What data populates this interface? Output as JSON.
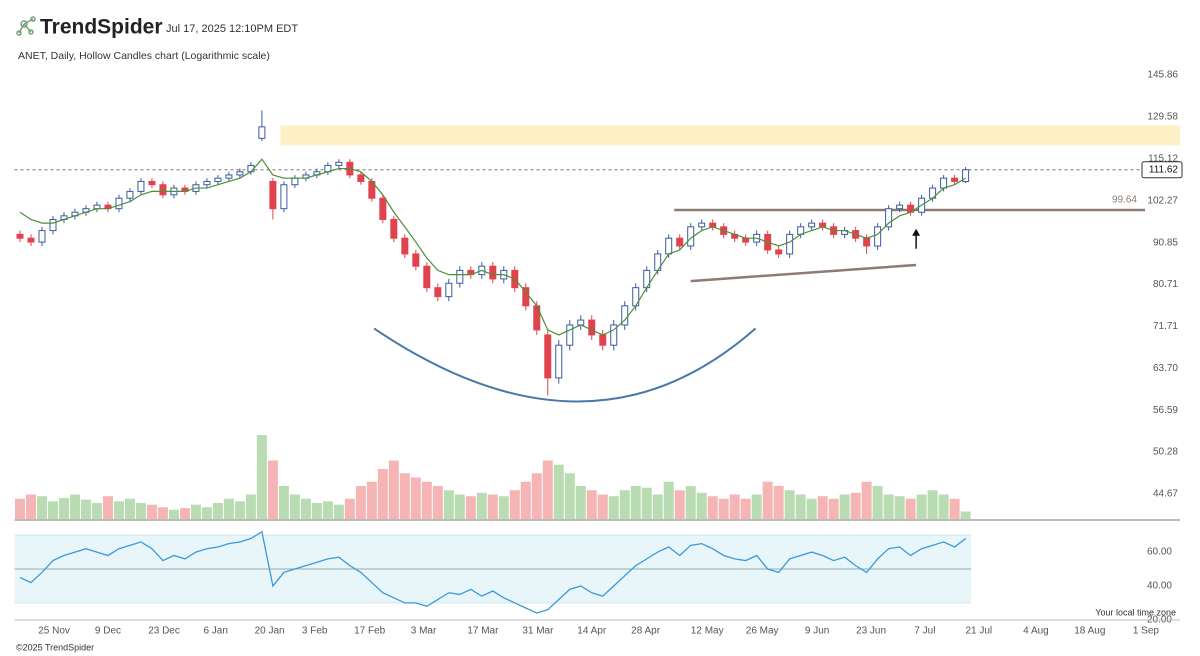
{
  "chart_data": {
    "type": "candlestick",
    "brand": "TrendSpider",
    "timestamp": "Jul 17, 2025 12:10PM EDT",
    "subtitle": "ANET, Daily, Hollow Candles chart (Logarithmic scale)",
    "copyright": "©2025 TrendSpider",
    "timezone_note": "Your local time zone",
    "log_scale": true,
    "xlim": [
      -0.5,
      105.5
    ],
    "xticks": [
      {
        "value": 3.1,
        "label": "25 Nov"
      },
      {
        "value": 8.0,
        "label": "9 Dec"
      },
      {
        "value": 13.1,
        "label": "23 Dec"
      },
      {
        "value": 17.8,
        "label": "6 Jan"
      },
      {
        "value": 22.7,
        "label": "20 Jan"
      },
      {
        "value": 26.8,
        "label": "3 Feb"
      },
      {
        "value": 31.8,
        "label": "17 Feb"
      },
      {
        "value": 36.7,
        "label": "3 Mar"
      },
      {
        "value": 42.1,
        "label": "17 Mar"
      },
      {
        "value": 47.1,
        "label": "31 Mar"
      },
      {
        "value": 52.0,
        "label": "14 Apr"
      },
      {
        "value": 56.9,
        "label": "28 Apr"
      },
      {
        "value": 62.5,
        "label": "12 May"
      },
      {
        "value": 67.5,
        "label": "26 May"
      },
      {
        "value": 72.5,
        "label": "9 Jun"
      },
      {
        "value": 77.4,
        "label": "23 Jun"
      },
      {
        "value": 82.3,
        "label": "7 Jul"
      },
      {
        "value": 87.2,
        "label": "21 Jul"
      },
      {
        "value": 92.4,
        "label": "4 Aug"
      },
      {
        "value": 97.3,
        "label": "18 Aug"
      },
      {
        "value": 102.4,
        "label": "1 Sep"
      }
    ],
    "ylim": [
      41.5,
      152.2
    ],
    "yticks": [
      145.86,
      129.58,
      115.12,
      102.27,
      90.85,
      80.71,
      71.71,
      {
        "value": 63.7,
        "label": "63.70"
      },
      56.59,
      50.28,
      44.67
    ],
    "up_color": "#3a5ba0",
    "down_color": "#e0434e",
    "ma_color": "#4e8f3a",
    "open": [
      93,
      92,
      91,
      94,
      97,
      98,
      99,
      100,
      101,
      100,
      103,
      105,
      108,
      107,
      104,
      106,
      105,
      107,
      108,
      109,
      110,
      111,
      122,
      108,
      100,
      107,
      109,
      110,
      111,
      113,
      114,
      110,
      108,
      103,
      97,
      92,
      88,
      85,
      80,
      78,
      81,
      84,
      83,
      85,
      82,
      84,
      80,
      76,
      70,
      62,
      68,
      72,
      73,
      70,
      68,
      72,
      76,
      80,
      84,
      88,
      92,
      90,
      95,
      96,
      95,
      93,
      92,
      91,
      93,
      89,
      88,
      93,
      95,
      96,
      95,
      93,
      94,
      92,
      90,
      95,
      100,
      101,
      99,
      103,
      106,
      109,
      108
    ],
    "high": [
      94,
      93,
      95,
      98,
      99,
      100,
      101,
      102,
      102,
      104,
      106,
      109,
      109,
      108,
      107,
      107,
      108,
      109,
      110,
      111,
      112,
      114,
      132,
      109,
      108,
      110,
      111,
      112,
      114,
      115,
      115,
      111,
      109,
      104,
      98,
      93,
      89,
      86,
      81,
      82,
      85,
      85,
      86,
      86,
      85,
      85,
      81,
      77,
      71,
      69,
      73,
      74,
      74,
      71,
      73,
      77,
      81,
      85,
      89,
      93,
      93,
      96,
      97,
      97,
      96,
      94,
      93,
      94,
      94,
      90,
      94,
      96,
      97,
      97,
      96,
      95,
      95,
      93,
      96,
      101,
      102,
      102,
      104,
      107,
      110,
      110,
      112.5
    ],
    "low": [
      91,
      90,
      90,
      93,
      96,
      97,
      98,
      99,
      99,
      99,
      102,
      104,
      106,
      103,
      103,
      104,
      104,
      106,
      107,
      108,
      109,
      110,
      121,
      97,
      99,
      106,
      108,
      109,
      110,
      112,
      109,
      107,
      102,
      96,
      91,
      87,
      84,
      79,
      77,
      77,
      80,
      82,
      82,
      81,
      81,
      79,
      75,
      70,
      59,
      61,
      67,
      71,
      69,
      67,
      67,
      71,
      75,
      79,
      83,
      87,
      89,
      89,
      94,
      94,
      92,
      91,
      90,
      90,
      88,
      87,
      87,
      92,
      94,
      94,
      92,
      92,
      91,
      88,
      89,
      94,
      99,
      98,
      98,
      102,
      105,
      107,
      107.5
    ],
    "close": [
      92,
      91,
      94,
      97,
      98,
      99,
      100,
      101,
      100,
      103,
      105,
      108,
      107,
      104,
      106,
      105,
      107,
      108,
      109,
      110,
      111,
      113,
      126,
      100,
      107,
      109,
      110,
      111,
      113,
      114,
      110,
      108,
      103,
      97,
      92,
      88,
      85,
      80,
      78,
      81,
      84,
      83,
      85,
      82,
      84,
      80,
      76,
      71,
      62,
      68,
      72,
      73,
      70,
      68,
      72,
      76,
      80,
      84,
      88,
      92,
      90,
      95,
      96,
      95,
      93,
      92,
      91,
      93,
      89,
      88,
      93,
      95,
      96,
      95,
      93,
      94,
      92,
      90,
      95,
      100,
      101,
      99,
      103,
      106,
      109,
      108,
      111.62
    ],
    "ma": [
      99,
      97,
      96,
      96,
      97,
      98,
      99,
      100,
      100,
      101,
      102,
      104,
      105,
      105,
      105,
      105,
      106,
      106,
      107,
      108,
      109,
      111,
      115,
      110,
      109,
      109,
      109,
      110,
      111,
      112,
      112,
      111,
      108,
      104,
      99,
      95,
      91,
      87,
      84,
      83,
      83,
      83,
      84,
      83,
      83,
      82,
      79,
      76,
      71,
      70,
      71,
      72,
      71,
      70,
      71,
      73,
      76,
      80,
      84,
      88,
      89,
      92,
      94,
      95,
      94,
      93,
      92,
      92,
      91,
      90,
      91,
      93,
      94,
      95,
      94,
      94,
      93,
      92,
      93,
      96,
      98,
      99,
      101,
      103,
      106,
      107,
      109
    ],
    "volume": [
      25,
      30,
      28,
      22,
      26,
      30,
      24,
      20,
      28,
      22,
      25,
      20,
      18,
      15,
      12,
      14,
      18,
      15,
      20,
      25,
      22,
      30,
      100,
      70,
      40,
      30,
      25,
      20,
      22,
      18,
      25,
      40,
      45,
      60,
      70,
      55,
      50,
      45,
      40,
      35,
      30,
      28,
      32,
      30,
      28,
      35,
      45,
      55,
      70,
      65,
      55,
      40,
      35,
      30,
      28,
      35,
      40,
      38,
      30,
      45,
      35,
      40,
      32,
      28,
      25,
      30,
      25,
      30,
      45,
      40,
      35,
      30,
      25,
      28,
      25,
      30,
      32,
      45,
      40,
      30,
      28,
      25,
      30,
      35,
      30,
      25,
      10
    ],
    "vlim": [
      0,
      100
    ],
    "vol_up_color": "#b9dcb2",
    "vol_down_color": "#f5b5b5",
    "rsi": [
      45,
      42,
      48,
      55,
      58,
      60,
      62,
      60,
      58,
      62,
      64,
      66,
      62,
      55,
      58,
      56,
      60,
      62,
      63,
      65,
      66,
      68,
      72,
      40,
      48,
      50,
      52,
      54,
      56,
      57,
      52,
      48,
      42,
      36,
      33,
      30,
      30,
      28,
      32,
      36,
      35,
      38,
      34,
      37,
      33,
      30,
      27,
      24,
      26,
      32,
      38,
      40,
      36,
      34,
      40,
      46,
      52,
      56,
      60,
      63,
      58,
      64,
      65,
      62,
      58,
      56,
      55,
      58,
      50,
      48,
      56,
      58,
      60,
      58,
      55,
      57,
      52,
      48,
      56,
      62,
      63,
      58,
      62,
      64,
      66,
      63,
      68
    ],
    "rsi_lim": [
      14,
      76
    ],
    "rsi_band": [
      30,
      70
    ],
    "rsi_mid": 50,
    "rsi_color": "#3a9ad9",
    "rsi_ticks": [
      {
        "value": 60,
        "label": "60.00"
      },
      {
        "value": 40,
        "label": "40.00"
      },
      {
        "value": 20,
        "label": "20.00"
      }
    ],
    "zone": {
      "x0": 23.7,
      "from": 119.6,
      "to": 126.5,
      "color": "#fdf0c4"
    },
    "level": {
      "value": 99.64,
      "x0": 59.5,
      "color": "#8c7b74"
    },
    "last_price": {
      "value": 111.62
    },
    "trendline": {
      "x": [
        61,
        81.5
      ],
      "y": [
        81.5,
        85.3
      ]
    },
    "cup": {
      "x": [
        32.2,
        50.7,
        66.9
      ],
      "y": [
        71.3,
        58.0,
        71.3
      ],
      "color": "#4a78a8"
    },
    "arrow": {
      "x": 81.5,
      "y": [
        89.3,
        94.5
      ]
    }
  }
}
